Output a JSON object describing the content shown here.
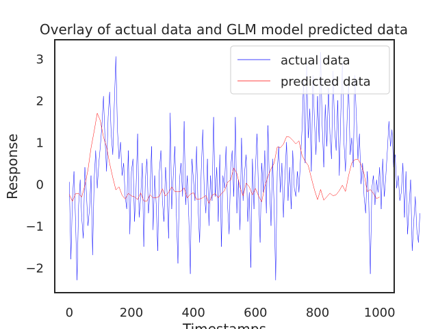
{
  "chart_data": {
    "type": "line",
    "title": "Overlay of actual data and GLM model predicted data",
    "xlabel": "Timestamps",
    "ylabel": "Response",
    "xlim": [
      -47,
      1047
    ],
    "ylim": [
      -2.6,
      3.45
    ],
    "xticks": [
      0,
      200,
      400,
      600,
      800,
      1000
    ],
    "yticks": [
      -2,
      -1,
      0,
      1,
      2,
      3
    ],
    "grid": false,
    "legend_position": "top-right",
    "series": [
      {
        "name": "actual data",
        "color": "#0000ff",
        "linewidth": 0.5,
        "sample_every": 5
      },
      {
        "name": "predicted data",
        "color": "#ff0000",
        "linewidth": 0.5,
        "sample_every": 10
      }
    ],
    "actual_y": [
      0.05,
      -1.8,
      -0.4,
      0.3,
      -0.9,
      -2.3,
      -0.5,
      0.1,
      -0.8,
      -1.3,
      0.4,
      -0.2,
      -1.0,
      -0.6,
      0.2,
      -1.7,
      0.1,
      0.8,
      -0.1,
      0.5,
      0.9,
      1.4,
      2.1,
      1.1,
      0.3,
      1.6,
      2.2,
      1.2,
      0.7,
      1.9,
      3.05,
      1.3,
      0.6,
      1.0,
      0.2,
      0.5,
      -0.3,
      -0.6,
      0.8,
      -1.2,
      0.3,
      0.6,
      -0.9,
      -0.1,
      1.2,
      -0.8,
      -0.3,
      0.5,
      -1.5,
      0.1,
      0.6,
      -0.7,
      -0.2,
      0.9,
      -1.1,
      0.2,
      -0.5,
      -1.6,
      0.3,
      0.8,
      -0.4,
      -0.9,
      0.4,
      -0.2,
      -1.3,
      1.7,
      -0.6,
      0.2,
      0.9,
      -0.7,
      -1.9,
      0.1,
      0.5,
      -0.3,
      1.5,
      -0.5,
      0.2,
      -0.8,
      -2.15,
      0.6,
      0.1,
      -0.4,
      0.9,
      -0.6,
      -1.4,
      0.3,
      1.3,
      -0.2,
      -0.7,
      0.6,
      -1.0,
      0.2,
      -0.4,
      1.6,
      -0.3,
      0.4,
      -0.9,
      0.7,
      -1.5,
      0.2,
      -0.1,
      0.9,
      -0.5,
      -1.2,
      0.4,
      0.8,
      -0.3,
      1.6,
      -0.7,
      0.1,
      -1.1,
      1.1,
      -0.4,
      0.3,
      0.7,
      -0.9,
      -0.2,
      -2.0,
      0.6,
      -0.6,
      0.4,
      1.2,
      -0.3,
      -1.4,
      0.5,
      -0.2,
      0.8,
      -0.7,
      1.4,
      0.0,
      -1.0,
      0.6,
      -0.5,
      -2.3,
      0.3,
      0.9,
      -0.2,
      0.5,
      -0.8,
      0.2,
      1.0,
      -0.4,
      0.4,
      -0.6,
      0.8,
      -0.1,
      -0.3,
      0.3,
      -0.2,
      0.6,
      1.3,
      2.5,
      0.5,
      2.9,
      1.1,
      1.8,
      0.3,
      2.6,
      1.5,
      0.7,
      2.1,
      1.0,
      3.15,
      1.4,
      0.4,
      1.9,
      0.9,
      2.3,
      1.2,
      0.6,
      2.7,
      1.3,
      0.8,
      2.0,
      0.2,
      1.7,
      2.9,
      1.0,
      0.3,
      1.5,
      2.4,
      0.7,
      1.1,
      0.4,
      2.6,
      1.6,
      0.6,
      1.2,
      0.0,
      0.5,
      -0.3,
      -0.7,
      0.3,
      -0.4,
      -2.15,
      -0.1,
      0.2,
      -0.5,
      0.1,
      -0.2,
      0.4,
      -0.6,
      0.6,
      -0.3,
      0.2,
      0.8,
      1.5,
      0.9,
      1.3,
      0.4,
      0.7,
      -0.1,
      0.2,
      -0.4,
      -0.2,
      0.5,
      -0.8,
      0.3,
      -1.2,
      -0.5,
      0.1,
      -1.6,
      -0.9,
      -0.3,
      -1.1,
      -1.4,
      -0.7
    ]
  }
}
